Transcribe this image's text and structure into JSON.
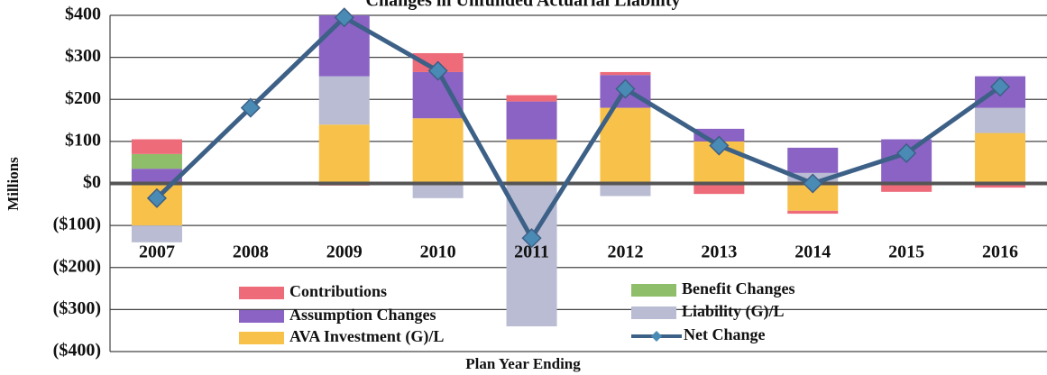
{
  "chart_data": {
    "type": "bar",
    "title": "Changes in Unfunded Actuarial Liability",
    "ylabel": "Millions",
    "xlabel": "Plan Year Ending",
    "stacked": true,
    "grid": true,
    "categories": [
      "2007",
      "2008",
      "2009",
      "2010",
      "2011",
      "2012",
      "2013",
      "2014",
      "2015",
      "2016"
    ],
    "series": [
      {
        "name": "Contributions",
        "color": "#ee6b7a",
        "values": [
          35,
          null,
          -5,
          45,
          15,
          7,
          -25,
          -7,
          -20,
          -10
        ]
      },
      {
        "name": "Benefit Changes",
        "color": "#8fbe6a",
        "values": [
          35,
          null,
          null,
          null,
          null,
          null,
          null,
          null,
          null,
          null
        ]
      },
      {
        "name": "Assumption Changes",
        "color": "#8a63c4",
        "values": [
          35,
          null,
          145,
          110,
          90,
          78,
          30,
          60,
          105,
          75
        ]
      },
      {
        "name": "Liability (G)/L",
        "color": "#b9bcd3",
        "values": [
          -40,
          null,
          115,
          -35,
          -340,
          -30,
          null,
          25,
          null,
          60
        ]
      },
      {
        "name": "AVA Investment (G)/L",
        "color": "#f8c24a",
        "values": [
          -100,
          null,
          140,
          155,
          105,
          180,
          100,
          -65,
          null,
          120
        ]
      }
    ],
    "line_series": {
      "name": "Net Change",
      "color": "#3d6087",
      "values": [
        -35,
        180,
        395,
        268,
        -130,
        225,
        90,
        0,
        72,
        230
      ]
    },
    "ylim": [
      -400,
      400
    ],
    "yticks": [
      {
        "value": 400,
        "label": "$400"
      },
      {
        "value": 300,
        "label": "$300"
      },
      {
        "value": 200,
        "label": "$200"
      },
      {
        "value": 100,
        "label": "$100"
      },
      {
        "value": 0,
        "label": "$0"
      },
      {
        "value": -100,
        "label": "($100)"
      },
      {
        "value": -200,
        "label": "($200)"
      },
      {
        "value": -300,
        "label": "($300)"
      },
      {
        "value": -400,
        "label": "($400)"
      }
    ]
  }
}
